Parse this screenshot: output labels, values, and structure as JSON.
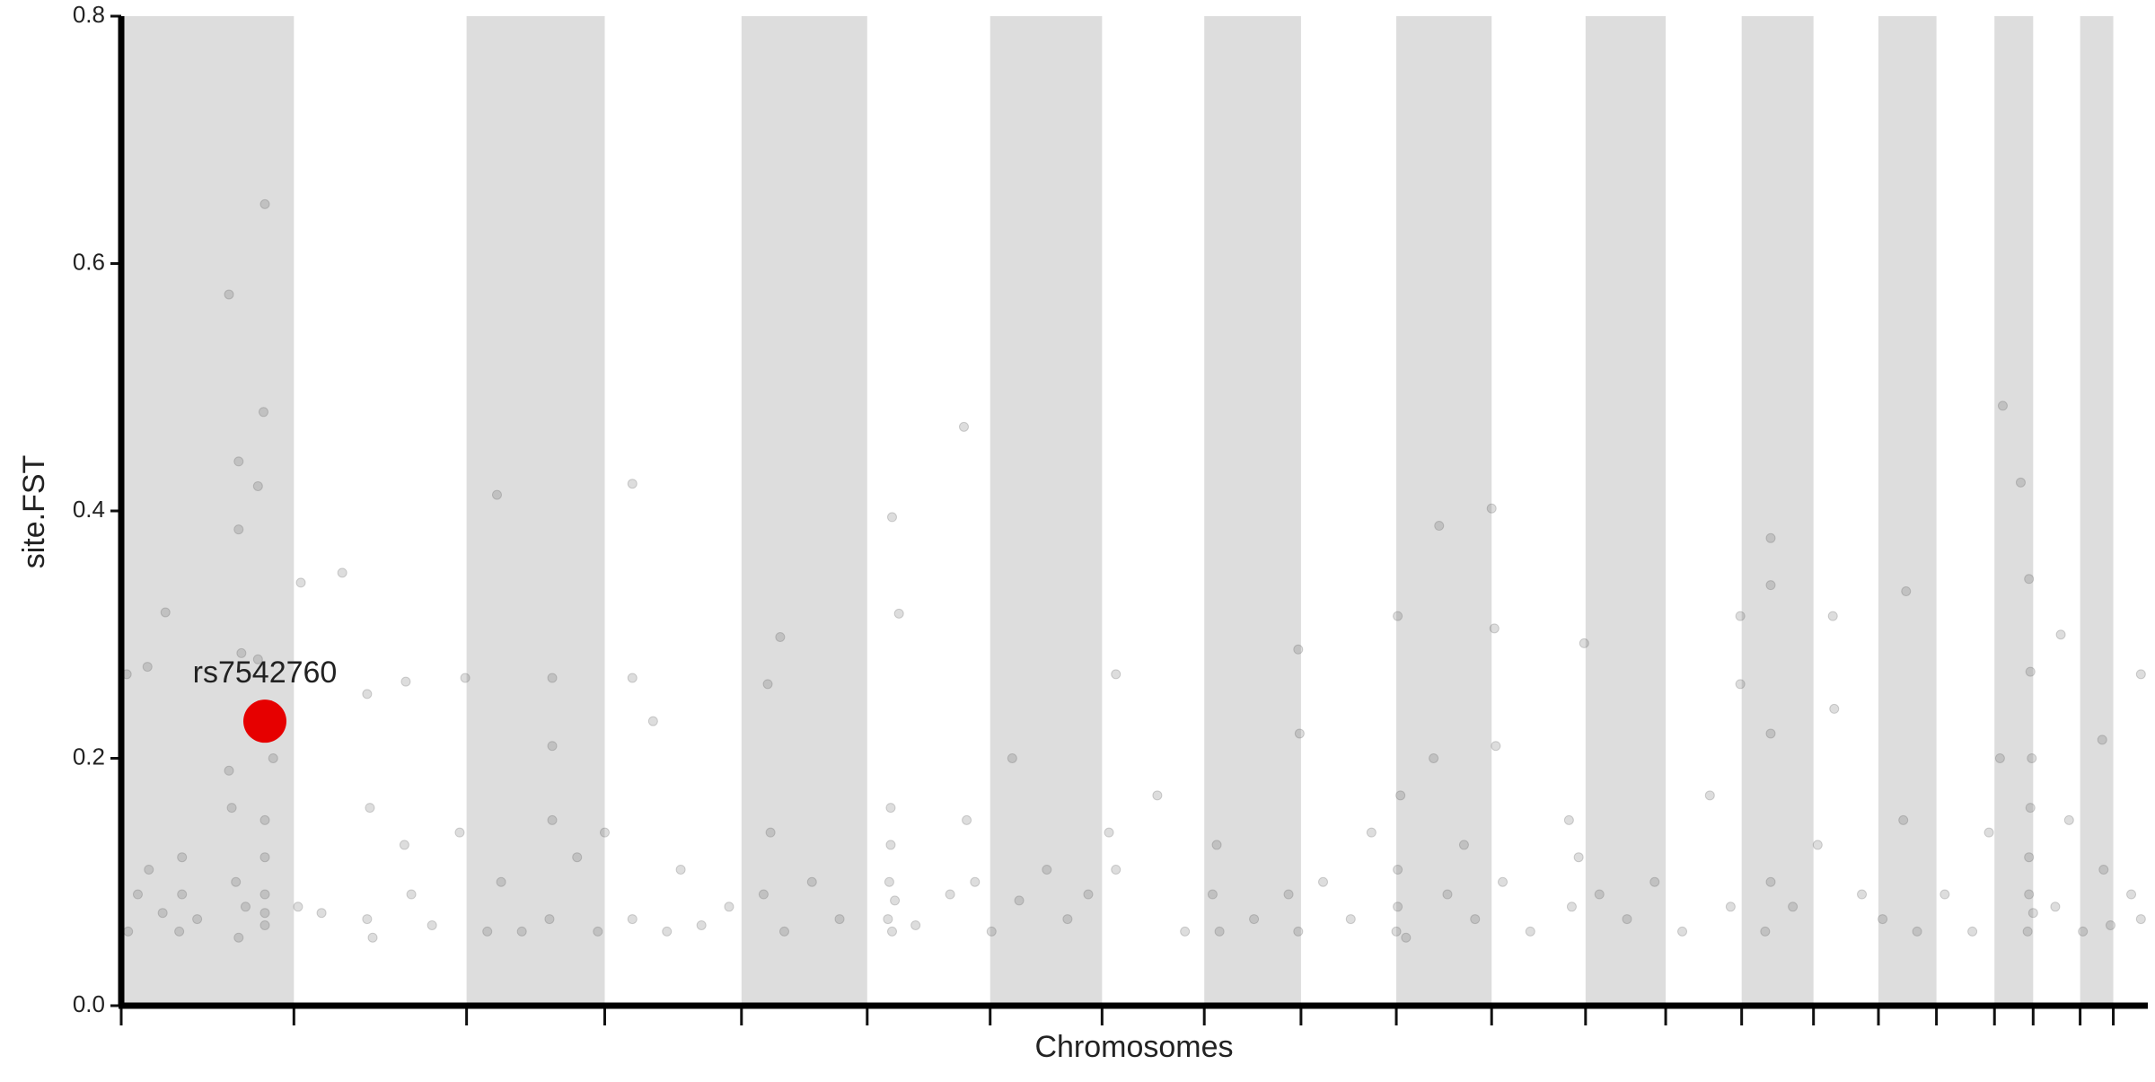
{
  "chart_data": {
    "type": "scatter",
    "ylabel": "site.FST",
    "xlabel": "Chromosomes",
    "xlim": [
      0,
      1467
    ],
    "xticks": [
      0,
      125,
      250,
      350,
      449,
      540,
      629,
      710,
      784,
      854,
      923,
      992,
      1060,
      1118,
      1173,
      1225,
      1272,
      1314,
      1356,
      1384,
      1418,
      1442
    ],
    "bands": [
      [
        0,
        125
      ],
      [
        250,
        350
      ],
      [
        449,
        540
      ],
      [
        629,
        710
      ],
      [
        784,
        854
      ],
      [
        923,
        992
      ],
      [
        1060,
        1118
      ],
      [
        1173,
        1225
      ],
      [
        1272,
        1314
      ],
      [
        1356,
        1384
      ],
      [
        1418,
        1442
      ]
    ],
    "band_color": "#dddddd",
    "ylim": [
      0,
      0.8
    ],
    "yticks": [
      {
        "value": 0,
        "label": "0.0"
      },
      0.2,
      0.4,
      0.6,
      0.8
    ],
    "color": "#555555",
    "x": [
      78,
      104,
      103,
      85,
      99,
      85,
      32,
      160,
      130,
      4,
      19,
      87,
      99,
      178,
      206,
      272,
      312,
      249,
      370,
      370,
      477,
      468,
      558,
      563,
      610,
      720,
      852,
      954,
      992,
      924,
      994,
      1059,
      1194,
      1194,
      1172,
      1239,
      1292,
      1362,
      1375,
      1381,
      1404,
      1462,
      1382,
      1434,
      5,
      12,
      20,
      30,
      42,
      44,
      44,
      55,
      78,
      80,
      83,
      85,
      90,
      104,
      104,
      104,
      104,
      104,
      110,
      128,
      145,
      178,
      180,
      182,
      205,
      210,
      225,
      245,
      265,
      275,
      290,
      310,
      312,
      312,
      330,
      345,
      350,
      370,
      385,
      395,
      405,
      420,
      440,
      465,
      470,
      480,
      500,
      520,
      555,
      556,
      557,
      557,
      558,
      560,
      575,
      600,
      612,
      618,
      630,
      645,
      650,
      670,
      685,
      700,
      715,
      720,
      750,
      770,
      790,
      793,
      795,
      820,
      845,
      852,
      853,
      870,
      890,
      905,
      923,
      924,
      924,
      926,
      930,
      950,
      960,
      972,
      980,
      995,
      1000,
      1020,
      1048,
      1050,
      1055,
      1070,
      1090,
      1110,
      1130,
      1150,
      1165,
      1172,
      1190,
      1194,
      1194,
      1210,
      1228,
      1240,
      1260,
      1275,
      1290,
      1300,
      1320,
      1340,
      1352,
      1360,
      1380,
      1381,
      1381,
      1382,
      1383,
      1384,
      1400,
      1410,
      1420,
      1435,
      1440,
      1455,
      1462
    ],
    "values": [
      0.575,
      0.648,
      0.48,
      0.44,
      0.42,
      0.385,
      0.318,
      0.35,
      0.342,
      0.268,
      0.274,
      0.285,
      0.28,
      0.252,
      0.262,
      0.413,
      0.265,
      0.265,
      0.422,
      0.265,
      0.298,
      0.26,
      0.395,
      0.317,
      0.468,
      0.268,
      0.288,
      0.388,
      0.402,
      0.315,
      0.305,
      0.293,
      0.378,
      0.34,
      0.315,
      0.315,
      0.335,
      0.485,
      0.423,
      0.345,
      0.3,
      0.268,
      0.27,
      0.215,
      0.06,
      0.09,
      0.11,
      0.075,
      0.06,
      0.09,
      0.12,
      0.07,
      0.19,
      0.16,
      0.1,
      0.055,
      0.08,
      0.065,
      0.09,
      0.12,
      0.15,
      0.075,
      0.2,
      0.08,
      0.075,
      0.07,
      0.16,
      0.055,
      0.13,
      0.09,
      0.065,
      0.14,
      0.06,
      0.1,
      0.06,
      0.07,
      0.15,
      0.21,
      0.12,
      0.06,
      0.14,
      0.07,
      0.23,
      0.06,
      0.11,
      0.065,
      0.08,
      0.09,
      0.14,
      0.06,
      0.1,
      0.07,
      0.07,
      0.1,
      0.13,
      0.16,
      0.06,
      0.085,
      0.065,
      0.09,
      0.15,
      0.1,
      0.06,
      0.2,
      0.085,
      0.11,
      0.07,
      0.09,
      0.14,
      0.11,
      0.17,
      0.06,
      0.09,
      0.13,
      0.06,
      0.07,
      0.09,
      0.06,
      0.22,
      0.1,
      0.07,
      0.14,
      0.06,
      0.08,
      0.11,
      0.17,
      0.055,
      0.2,
      0.09,
      0.13,
      0.07,
      0.21,
      0.1,
      0.06,
      0.15,
      0.08,
      0.12,
      0.09,
      0.07,
      0.1,
      0.06,
      0.17,
      0.08,
      0.26,
      0.06,
      0.1,
      0.22,
      0.08,
      0.13,
      0.24,
      0.09,
      0.07,
      0.15,
      0.06,
      0.09,
      0.06,
      0.14,
      0.2,
      0.06,
      0.09,
      0.12,
      0.16,
      0.2,
      0.075,
      0.08,
      0.15,
      0.06,
      0.11,
      0.065,
      0.09,
      0.07
    ],
    "highlight": {
      "label": "rs7542760",
      "x": 104,
      "y": 0.23,
      "color": "#e60000"
    }
  }
}
